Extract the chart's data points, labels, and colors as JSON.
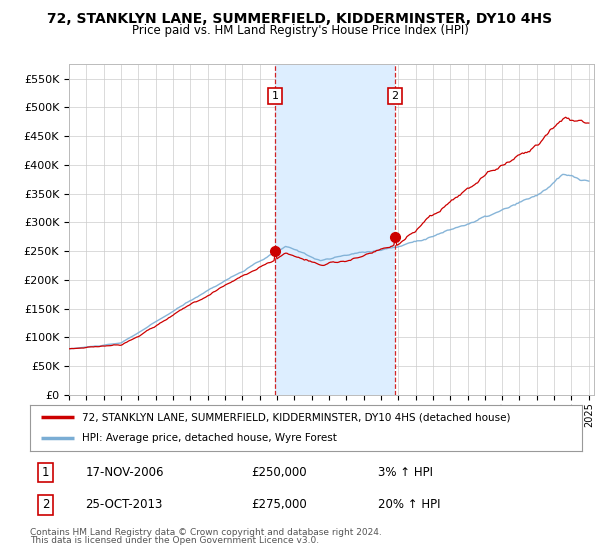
{
  "title": "72, STANKLYN LANE, SUMMERFIELD, KIDDERMINSTER, DY10 4HS",
  "subtitle": "Price paid vs. HM Land Registry's House Price Index (HPI)",
  "ylim": [
    0,
    575000
  ],
  "yticks": [
    0,
    50000,
    100000,
    150000,
    200000,
    250000,
    300000,
    350000,
    400000,
    450000,
    500000,
    550000
  ],
  "ytick_labels": [
    "£0",
    "£50K",
    "£100K",
    "£150K",
    "£200K",
    "£250K",
    "£300K",
    "£350K",
    "£400K",
    "£450K",
    "£500K",
    "£550K"
  ],
  "purchase1_year": 2006.88,
  "purchase1_price": 250000,
  "purchase1_date": "17-NOV-2006",
  "purchase1_pct": "3%",
  "purchase2_year": 2013.82,
  "purchase2_price": 275000,
  "purchase2_date": "25-OCT-2013",
  "purchase2_pct": "20%",
  "hpi_color": "#7aadd4",
  "price_color": "#cc0000",
  "dot_color": "#cc0000",
  "marker_box_color": "#cc0000",
  "vline_color": "#cc0000",
  "shade_color": "#ddeeff",
  "legend_line1": "72, STANKLYN LANE, SUMMERFIELD, KIDDERMINSTER, DY10 4HS (detached house)",
  "legend_line2": "HPI: Average price, detached house, Wyre Forest",
  "footer1": "Contains HM Land Registry data © Crown copyright and database right 2024.",
  "footer2": "This data is licensed under the Open Government Licence v3.0.",
  "background_color": "#ffffff",
  "plot_bg_color": "#ffffff",
  "grid_color": "#cccccc"
}
